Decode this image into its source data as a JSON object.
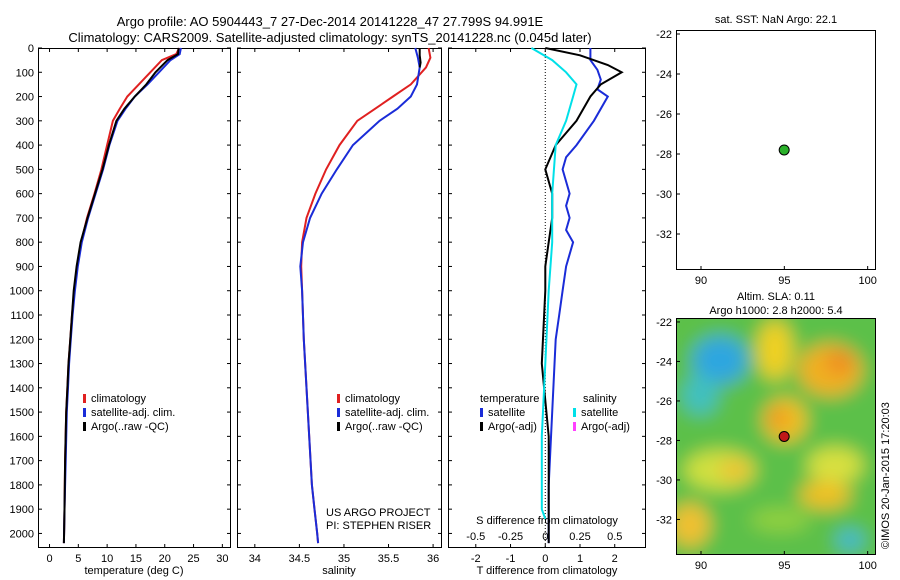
{
  "title_line1": "Argo profile: AO 5904443_7 27-Dec-2014 20141228_47 27.799S 94.991E",
  "title_line2": "Climatology: CARS2009. Satellite-adjusted climatology: synTS_20141228.nc (0.045d later)",
  "sst_label": "sat. SST: NaN Argo: 22.1",
  "sla_label": "Altim. SLA: 0.11",
  "height_label": "Argo h1000: 2.8 h2000: 5.4",
  "credit": "©IMOS 20-Jan-2015 17:20:03",
  "project_line1": "US ARGO PROJECT",
  "project_line2": "PI: STEPHEN RISER",
  "colors": {
    "climatology": "#e02020",
    "satellite": "#1a2cd8",
    "argo": "#000000",
    "s_satellite": "#00e0e8",
    "s_argo": "#ff40ff"
  },
  "legend": {
    "climatology": "climatology",
    "satellite": "satellite-adj. clim.",
    "argo": "Argo(..raw -QC)",
    "diff_temperature": "temperature",
    "diff_salinity": "salinity",
    "diff_satellite": "satellite",
    "diff_argo": "Argo(-adj)"
  },
  "chart_data": [
    {
      "type": "line",
      "xlabel": "temperature (deg C)",
      "xlim": [
        -2,
        31.5
      ],
      "ylim": [
        2060,
        0
      ],
      "xticks": [
        0,
        5,
        10,
        15,
        20,
        25,
        30
      ],
      "yticks": [
        0,
        100,
        200,
        300,
        400,
        500,
        600,
        700,
        800,
        900,
        1000,
        1100,
        1200,
        1300,
        1400,
        1500,
        1600,
        1700,
        1800,
        1900,
        2000
      ],
      "series": [
        {
          "name": "climatology",
          "x": [
            22.5,
            22.0,
            19.5,
            17.5,
            15.5,
            13.5,
            12.2,
            11.0,
            10.0,
            9.0,
            7.8,
            6.5,
            5.5,
            4.8,
            4.3,
            3.9,
            3.6,
            3.3,
            3.1,
            2.9,
            2.7,
            2.6,
            2.5
          ],
          "y": [
            0,
            25,
            50,
            100,
            150,
            200,
            250,
            300,
            400,
            500,
            600,
            700,
            800,
            900,
            1000,
            1100,
            1200,
            1300,
            1400,
            1500,
            1700,
            1900,
            2040
          ]
        },
        {
          "name": "satellite-adj. clim.",
          "x": [
            22.8,
            22.6,
            21.0,
            19.0,
            17.0,
            14.8,
            13.2,
            11.8,
            10.4,
            9.3,
            8.0,
            6.7,
            5.6,
            4.9,
            4.4,
            4.0,
            3.7,
            3.4,
            3.2,
            3.0,
            2.8,
            2.6,
            2.5
          ],
          "y": [
            0,
            25,
            50,
            100,
            150,
            200,
            250,
            300,
            400,
            500,
            600,
            700,
            800,
            900,
            1000,
            1100,
            1200,
            1300,
            1400,
            1500,
            1700,
            1900,
            2040
          ]
        },
        {
          "name": "Argo(..raw -QC)",
          "x": [
            22.4,
            22.3,
            20.5,
            18.4,
            16.8,
            14.8,
            13.0,
            11.6,
            10.3,
            9.2,
            7.9,
            6.6,
            5.4,
            4.7,
            4.2,
            3.9,
            3.6,
            3.3,
            3.1,
            2.9,
            2.7,
            2.6,
            2.5
          ],
          "y": [
            0,
            25,
            50,
            100,
            150,
            200,
            250,
            300,
            400,
            500,
            600,
            700,
            800,
            900,
            1000,
            1100,
            1200,
            1300,
            1400,
            1500,
            1700,
            1900,
            2040
          ]
        }
      ]
    },
    {
      "type": "line",
      "xlabel": "salinity",
      "xlim": [
        33.8,
        36.1
      ],
      "ylim": [
        2060,
        0
      ],
      "xticks": [
        34,
        34.5,
        35,
        35.5,
        36
      ],
      "series": [
        {
          "name": "climatology",
          "x": [
            35.95,
            35.97,
            35.92,
            35.75,
            35.55,
            35.35,
            35.15,
            34.95,
            34.8,
            34.68,
            34.58,
            34.53,
            34.52,
            34.53,
            34.55,
            34.58,
            34.61,
            34.64,
            34.67,
            34.7,
            34.71
          ],
          "y": [
            0,
            40,
            80,
            150,
            200,
            250,
            300,
            400,
            500,
            600,
            700,
            800,
            900,
            1000,
            1200,
            1400,
            1600,
            1800,
            1900,
            2000,
            2040
          ]
        },
        {
          "name": "satellite-adj. clim.",
          "x": [
            35.8,
            35.83,
            35.85,
            35.82,
            35.75,
            35.6,
            35.4,
            35.1,
            34.92,
            34.75,
            34.62,
            34.54,
            34.51,
            34.53,
            34.55,
            34.58,
            34.61,
            34.64,
            34.67,
            34.7,
            34.71
          ],
          "y": [
            0,
            40,
            80,
            150,
            200,
            250,
            300,
            400,
            500,
            600,
            700,
            800,
            900,
            1000,
            1200,
            1400,
            1600,
            1800,
            1900,
            2000,
            2040
          ]
        },
        {
          "name": "Argo(..raw -QC)",
          "x": [
            35.85,
            35.85,
            35.86,
            35.85
          ],
          "y": [
            0,
            30,
            60,
            80
          ]
        }
      ]
    },
    {
      "type": "line",
      "xlabel": "T difference from climatology",
      "x2label": "S difference from climatology",
      "xlim": [
        -2.8,
        2.9
      ],
      "ylim": [
        2060,
        0
      ],
      "xticks": [
        -2,
        -1,
        0,
        1,
        2
      ],
      "x2ticks": [
        -0.5,
        -0.25,
        0,
        0.25,
        0.5
      ],
      "x2ticklabels": [
        "-0.5",
        "-0.25",
        "0",
        "0.25",
        "0.5"
      ],
      "series": [
        {
          "name": "T satellite",
          "x": [
            1.3,
            1.3,
            1.5,
            1.6,
            1.5,
            1.8,
            1.4,
            0.9,
            0.6,
            0.5,
            0.6,
            0.7,
            0.6,
            0.7,
            0.6,
            0.8,
            0.7,
            0.6,
            0.5,
            0.4,
            0.3,
            0.2,
            0.1,
            0.1
          ],
          "y": [
            0,
            50,
            90,
            130,
            170,
            200,
            300,
            400,
            450,
            500,
            550,
            600,
            650,
            700,
            750,
            800,
            850,
            900,
            1000,
            1100,
            1200,
            1500,
            1800,
            2040
          ]
        },
        {
          "name": "T Argo(-adj)",
          "x": [
            0.0,
            1.0,
            1.8,
            2.2,
            1.6,
            1.3,
            0.9,
            0.3,
            0.0,
            0.2,
            0.2,
            0.1,
            0.0,
            0.0,
            -0.1,
            0.1,
            0.1
          ],
          "y": [
            0,
            30,
            70,
            100,
            150,
            200,
            300,
            400,
            500,
            600,
            700,
            800,
            900,
            1000,
            1300,
            1600,
            2040
          ]
        },
        {
          "name": "S satellite",
          "x": [
            -0.4,
            0.2,
            0.6,
            0.9,
            0.8,
            0.6,
            0.3,
            0.2,
            0.2,
            0.1,
            0.0,
            -0.1,
            -0.1,
            0.0
          ],
          "y": [
            0,
            50,
            100,
            150,
            200,
            300,
            400,
            600,
            800,
            1000,
            1300,
            1600,
            1900,
            1940
          ]
        }
      ]
    },
    {
      "type": "scatter",
      "title": "sat. SST: NaN Argo: 22.1",
      "xlim": [
        88.5,
        100.5
      ],
      "ylim": [
        -33.8,
        -21.8
      ],
      "xticks": [
        90,
        95,
        100
      ],
      "yticks": [
        -22,
        -24,
        -26,
        -28,
        -30,
        -32
      ],
      "points": [
        {
          "x": 94.991,
          "y": -27.799
        }
      ]
    },
    {
      "type": "heatmap",
      "title": "Altim. SLA: 0.11",
      "xlim": [
        88.5,
        100.5
      ],
      "ylim": [
        -33.8,
        -21.8
      ],
      "xticks": [
        90,
        95,
        100
      ],
      "yticks": [
        -22,
        -24,
        -26,
        -28,
        -30,
        -32
      ],
      "points": [
        {
          "x": 94.991,
          "y": -27.799
        }
      ]
    }
  ]
}
